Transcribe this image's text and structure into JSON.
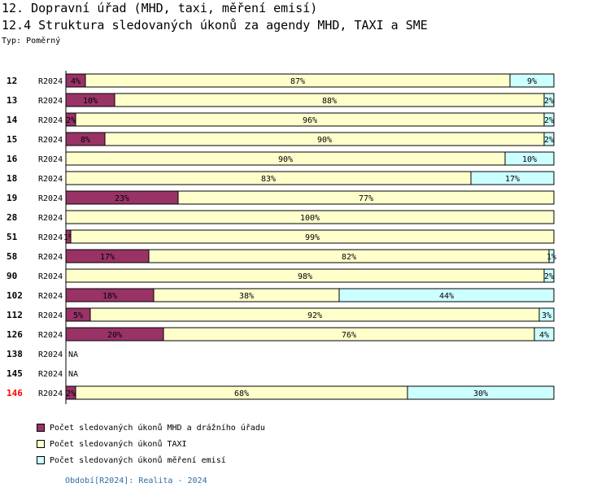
{
  "header": {
    "title": "12. Dopravní úřad (MHD, taxi, měření emisí)",
    "subtitle": "12.4 Struktura sledovaných úkonů za agendy MHD, TAXI a SME",
    "type_label": "Typ: Poměrný"
  },
  "chart_data": {
    "type": "bar",
    "orientation": "horizontal",
    "stacked": "percent",
    "period_label": "R2024",
    "categories": [
      "12",
      "13",
      "14",
      "15",
      "16",
      "18",
      "19",
      "28",
      "51",
      "58",
      "90",
      "102",
      "112",
      "126",
      "138",
      "145",
      "146"
    ],
    "highlight_category": "146",
    "highlight_color": "#ff0000",
    "series": [
      {
        "name": "Počet sledovaných úkonů MHD a drážního úřadu",
        "color": "#993366",
        "values": [
          4,
          10,
          2,
          8,
          0,
          0,
          23,
          0,
          1,
          17,
          0,
          18,
          5,
          20,
          null,
          null,
          2
        ]
      },
      {
        "name": "Počet sledovaných úkonů TAXI",
        "color": "#ffffcc",
        "values": [
          87,
          88,
          96,
          90,
          90,
          83,
          77,
          100,
          99,
          82,
          98,
          38,
          92,
          76,
          null,
          null,
          68
        ]
      },
      {
        "name": "Počet sledovaných úkonů měření emisí",
        "color": "#ccffff",
        "values": [
          9,
          2,
          2,
          2,
          10,
          17,
          0,
          0,
          0,
          1,
          2,
          44,
          3,
          4,
          null,
          null,
          30
        ]
      }
    ],
    "na_label": "NA",
    "value_suffix": "%",
    "xlim": [
      0,
      100
    ]
  },
  "legend": {
    "items": [
      {
        "label": "Počet sledovaných úkonů MHD a drážního úřadu",
        "color": "#993366"
      },
      {
        "label": "Počet sledovaných úkonů TAXI",
        "color": "#ffffcc"
      },
      {
        "label": "Počet sledovaných úkonů měření emisí",
        "color": "#ccffff"
      }
    ]
  },
  "footer": "Období[R2024]: Realita - 2024"
}
